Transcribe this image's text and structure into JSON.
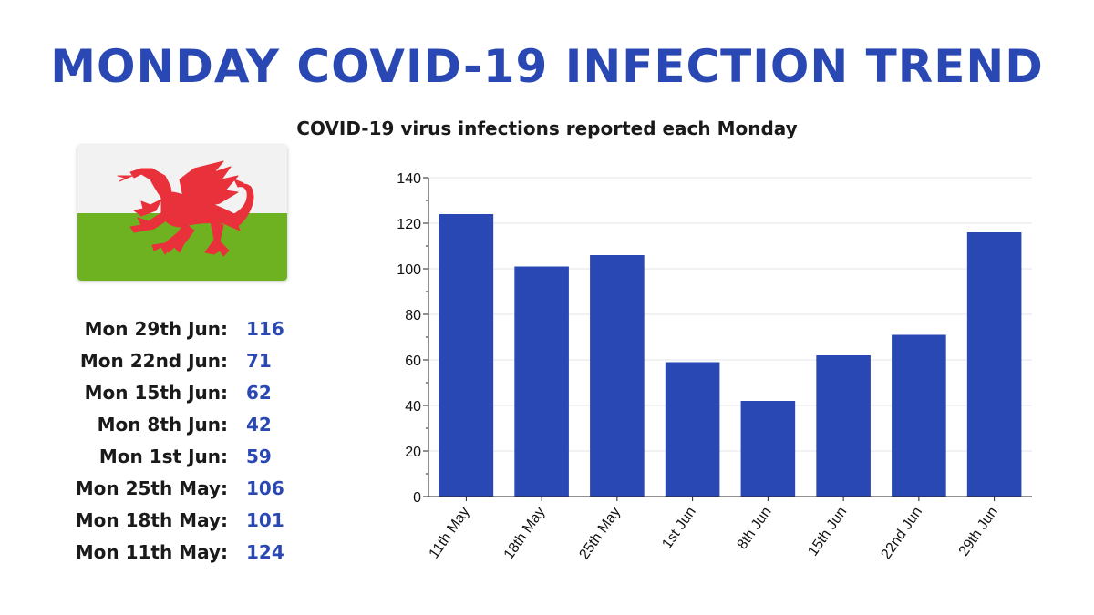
{
  "header": {
    "title": "MONDAY COVID-19 INFECTION TREND",
    "subtitle": "COVID-19 virus infections reported each Monday"
  },
  "flag": {
    "name": "Wales flag",
    "colors": {
      "top": "#f2f2f2",
      "bottom": "#6fb221",
      "dragon": "#e8313b"
    }
  },
  "weekly_list": [
    {
      "label": "Mon 29th Jun:",
      "value": "116"
    },
    {
      "label": "Mon 22nd Jun:",
      "value": "71"
    },
    {
      "label": "Mon 15th Jun:",
      "value": "62"
    },
    {
      "label": "Mon 8th Jun:",
      "value": "42"
    },
    {
      "label": "Mon 1st Jun:",
      "value": "59"
    },
    {
      "label": "Mon 25th May:",
      "value": "106"
    },
    {
      "label": "Mon 18th May:",
      "value": "101"
    },
    {
      "label": "Mon 11th May:",
      "value": "124"
    }
  ],
  "colors": {
    "accent": "#2a48b4",
    "bar": "#2a48b4"
  },
  "chart_data": {
    "type": "bar",
    "title": "COVID-19 virus infections reported each Monday",
    "categories": [
      "11th May",
      "18th May",
      "25th May",
      "1st Jun",
      "8th Jun",
      "15th Jun",
      "22nd Jun",
      "29th Jun"
    ],
    "values": [
      124,
      101,
      106,
      59,
      42,
      62,
      71,
      116
    ],
    "xlabel": "",
    "ylabel": "",
    "ylim": [
      0,
      140
    ],
    "yticks": [
      "0",
      "20",
      "40",
      "60",
      "80",
      "100",
      "120",
      "140"
    ],
    "grid": true
  }
}
